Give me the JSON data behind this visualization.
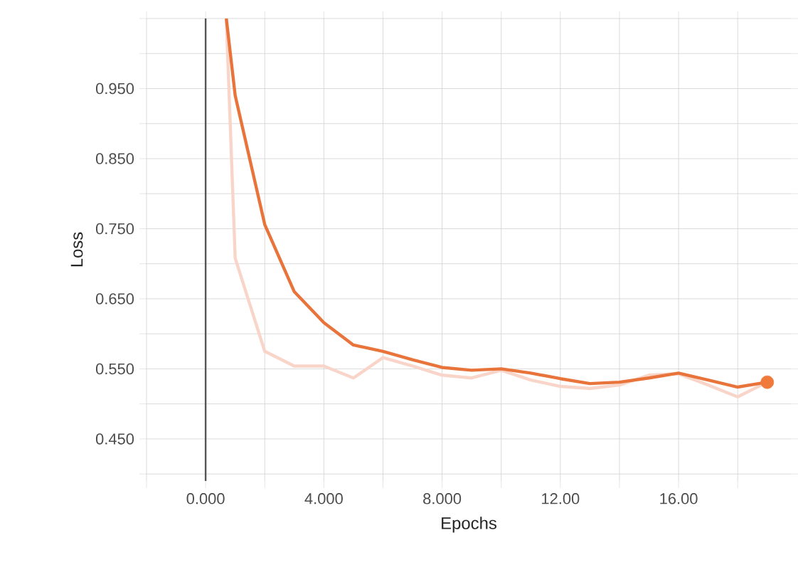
{
  "chart_data": {
    "type": "line",
    "xlabel": "Epochs",
    "ylabel": "Loss",
    "xlim": [
      -2,
      19.8
    ],
    "ylim": [
      0.39,
      1.05
    ],
    "xticks": [
      {
        "value": -2,
        "label": null
      },
      {
        "value": 0,
        "label": "0.000"
      },
      {
        "value": 2,
        "label": null
      },
      {
        "value": 4,
        "label": "4.000"
      },
      {
        "value": 6,
        "label": null
      },
      {
        "value": 8,
        "label": "8.000"
      },
      {
        "value": 10,
        "label": null
      },
      {
        "value": 12,
        "label": "12.00"
      },
      {
        "value": 14,
        "label": null
      },
      {
        "value": 16,
        "label": "16.00"
      },
      {
        "value": 18,
        "label": null
      }
    ],
    "yticks": [
      {
        "value": 0.4,
        "label": null
      },
      {
        "value": 0.45,
        "label": "0.450"
      },
      {
        "value": 0.5,
        "label": null
      },
      {
        "value": 0.55,
        "label": "0.550"
      },
      {
        "value": 0.6,
        "label": null
      },
      {
        "value": 0.65,
        "label": "0.650"
      },
      {
        "value": 0.7,
        "label": null
      },
      {
        "value": 0.75,
        "label": "0.750"
      },
      {
        "value": 0.8,
        "label": null
      },
      {
        "value": 0.85,
        "label": "0.850"
      },
      {
        "value": 0.9,
        "label": null
      },
      {
        "value": 0.95,
        "label": "0.950"
      },
      {
        "value": 1.0,
        "label": null
      },
      {
        "value": 1.05,
        "label": null
      }
    ],
    "grid": true,
    "ref_lines": [
      {
        "axis": "x",
        "value": 0,
        "color": "#555555"
      }
    ],
    "series": [
      {
        "color": "#f9d5c9",
        "x": [
          0.7,
          1,
          2,
          3,
          4,
          5,
          6,
          7,
          8,
          9,
          10,
          11,
          12,
          13,
          14,
          15,
          16,
          17,
          18,
          19
        ],
        "values": [
          1.05,
          0.708,
          0.575,
          0.554,
          0.554,
          0.537,
          0.566,
          0.554,
          0.541,
          0.537,
          0.548,
          0.534,
          0.525,
          0.522,
          0.527,
          0.541,
          0.543,
          0.527,
          0.51,
          0.531
        ]
      },
      {
        "color": "#e8743b",
        "x": [
          0.7,
          1,
          2,
          3,
          4,
          5,
          6,
          7,
          8,
          9,
          10,
          11,
          12,
          13,
          14,
          15,
          16,
          17,
          18,
          19
        ],
        "values": [
          1.05,
          0.94,
          0.756,
          0.66,
          0.616,
          0.584,
          0.575,
          0.563,
          0.552,
          0.548,
          0.55,
          0.544,
          0.536,
          0.529,
          0.531,
          0.537,
          0.544,
          0.534,
          0.524,
          0.531
        ]
      },
      {
        "type": "scatter",
        "color": "#f07a3c",
        "x": [
          19
        ],
        "values": [
          0.531
        ]
      }
    ]
  }
}
